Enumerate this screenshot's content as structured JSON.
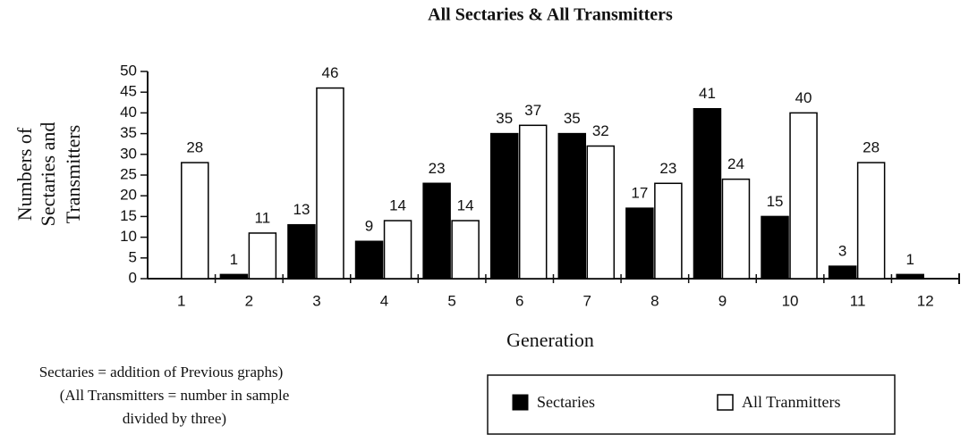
{
  "chart_data": {
    "type": "bar",
    "title": "All Sectaries & All Transmitters",
    "x_label": "Generation",
    "y_label": [
      "Numbers of",
      "Sectaries and",
      "Transmitters"
    ],
    "annotation": [
      "Sectaries = addition of Previous graphs)",
      "(All Transmitters = number in sample",
      "divided by three)"
    ],
    "categories": [
      "1",
      "2",
      "3",
      "4",
      "5",
      "6",
      "7",
      "8",
      "9",
      "10",
      "11",
      "12"
    ],
    "series": [
      {
        "name": "Sectaries",
        "color": "#000000",
        "values": [
          null,
          1,
          13,
          9,
          23,
          35,
          35,
          17,
          41,
          15,
          3,
          1
        ]
      },
      {
        "name": "All Tranmitters",
        "color": "#ffffff",
        "values": [
          28,
          11,
          46,
          14,
          14,
          37,
          32,
          23,
          24,
          40,
          28,
          null
        ]
      }
    ],
    "ylim": [
      0,
      50
    ],
    "yticks": [
      0,
      5,
      10,
      15,
      20,
      25,
      30,
      35,
      40,
      45,
      50
    ]
  }
}
